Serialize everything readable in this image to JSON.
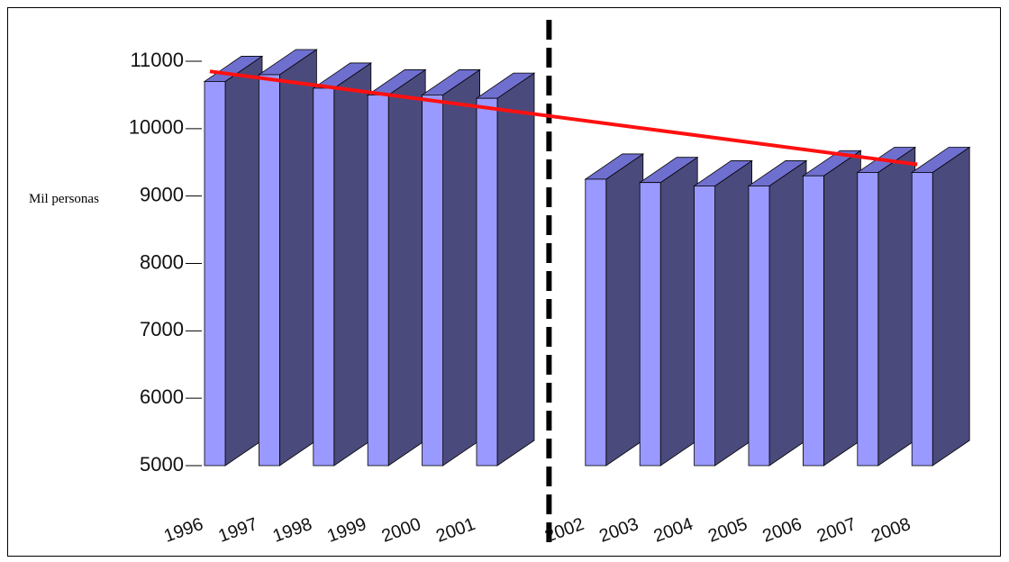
{
  "chart_data": {
    "type": "bar3d",
    "ylabel": "Mil personas",
    "categories": [
      "1996",
      "1997",
      "1998",
      "1999",
      "2000",
      "2001",
      null,
      "2002",
      "2003",
      "2004",
      "2005",
      "2006",
      "2007",
      "2008"
    ],
    "values": [
      10700,
      10800,
      10600,
      10500,
      10500,
      10450,
      null,
      9250,
      9200,
      9150,
      9150,
      9300,
      9350,
      9350
    ],
    "colors": {
      "front": "#9999ff",
      "side": "#4b4a7c",
      "top": "#6f6fd0"
    },
    "trend": {
      "color": "#ff1010",
      "values": [
        10850,
        9470
      ]
    },
    "ylim": [
      5000,
      11000
    ],
    "yticks": [
      5000,
      6000,
      7000,
      8000,
      9000,
      10000,
      11000
    ]
  }
}
